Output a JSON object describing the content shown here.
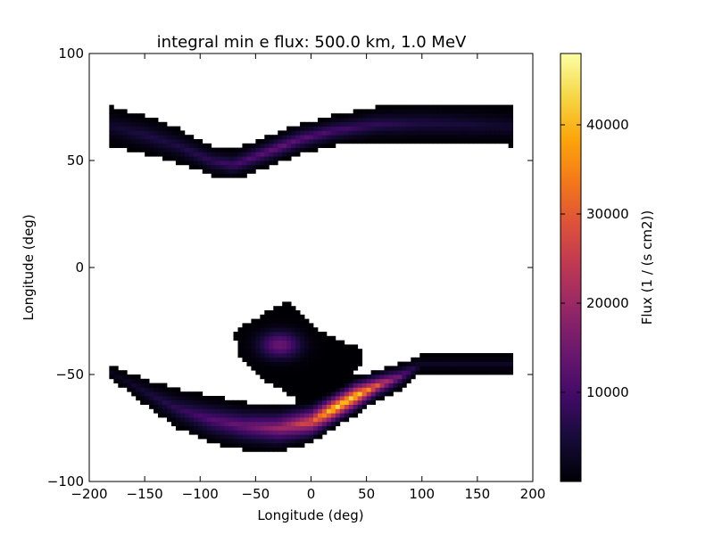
{
  "chart_data": {
    "type": "heatmap",
    "title": "integral min e flux: 500.0 km, 1.0 MeV",
    "xlabel": "Longitude (deg)",
    "ylabel": "Longitude (deg)",
    "xlim": [
      -200,
      200
    ],
    "ylim": [
      -100,
      100
    ],
    "xticks": [
      -200,
      -150,
      -100,
      -50,
      0,
      50,
      100,
      150,
      200
    ],
    "xtick_labels": [
      "−200",
      "−150",
      "−100",
      "−50",
      "0",
      "50",
      "100",
      "150",
      "200"
    ],
    "yticks": [
      -100,
      -50,
      0,
      50,
      100
    ],
    "ytick_labels": [
      "−100",
      "−50",
      "0",
      "50",
      "100"
    ],
    "colormap": "inferno",
    "colorbar": {
      "label": "Flux (1 / (s cm2))",
      "min": 0,
      "max": 48000,
      "ticks": [
        10000,
        20000,
        30000,
        40000
      ],
      "tick_labels": [
        "10000",
        "20000",
        "30000",
        "40000"
      ]
    },
    "grid": false,
    "regions": [
      {
        "name": "northern-band",
        "peak_flux": 14000,
        "peak_longitude": -20,
        "centerline": [
          [
            -180,
            66
          ],
          [
            -150,
            62
          ],
          [
            -120,
            57
          ],
          [
            -90,
            50
          ],
          [
            -70,
            48
          ],
          [
            -40,
            54
          ],
          [
            -10,
            60
          ],
          [
            20,
            64
          ],
          [
            60,
            67
          ],
          [
            100,
            67.5
          ],
          [
            140,
            67
          ],
          [
            180,
            66
          ]
        ],
        "half_width": [
          [
            -180,
            9
          ],
          [
            -150,
            9
          ],
          [
            -120,
            8
          ],
          [
            -90,
            7
          ],
          [
            -70,
            7
          ],
          [
            -40,
            7
          ],
          [
            -10,
            7
          ],
          [
            20,
            7
          ],
          [
            60,
            8
          ],
          [
            100,
            9
          ],
          [
            140,
            9
          ],
          [
            180,
            9
          ]
        ],
        "flux_profile": [
          [
            -180,
            4000
          ],
          [
            -150,
            6000
          ],
          [
            -120,
            6000
          ],
          [
            -90,
            8000
          ],
          [
            -60,
            11000
          ],
          [
            -30,
            14000
          ],
          [
            0,
            12000
          ],
          [
            30,
            10000
          ],
          [
            60,
            8000
          ],
          [
            100,
            6000
          ],
          [
            140,
            5000
          ],
          [
            180,
            4000
          ]
        ]
      },
      {
        "name": "southern-anomaly",
        "peak_flux": 48000,
        "peak_longitude": 30,
        "centerline": [
          [
            -180,
            -49
          ],
          [
            -150,
            -58
          ],
          [
            -120,
            -66
          ],
          [
            -90,
            -71
          ],
          [
            -60,
            -74
          ],
          [
            -30,
            -75
          ],
          [
            0,
            -72
          ],
          [
            20,
            -66
          ],
          [
            40,
            -60
          ],
          [
            60,
            -55
          ],
          [
            80,
            -51
          ],
          [
            100,
            -45
          ]
        ],
        "half_width": [
          [
            -180,
            3
          ],
          [
            -150,
            6
          ],
          [
            -120,
            9
          ],
          [
            -90,
            11
          ],
          [
            -60,
            11
          ],
          [
            -30,
            11
          ],
          [
            0,
            10
          ],
          [
            20,
            9
          ],
          [
            40,
            9
          ],
          [
            60,
            7
          ],
          [
            80,
            6
          ],
          [
            100,
            4
          ]
        ],
        "flux_profile": [
          [
            -180,
            2000
          ],
          [
            -150,
            5000
          ],
          [
            -120,
            8000
          ],
          [
            -90,
            12000
          ],
          [
            -60,
            15000
          ],
          [
            -30,
            20000
          ],
          [
            0,
            30000
          ],
          [
            20,
            45000
          ],
          [
            40,
            44000
          ],
          [
            60,
            30000
          ],
          [
            80,
            15000
          ],
          [
            100,
            3000
          ]
        ]
      },
      {
        "name": "southern-patch",
        "peak_flux": 14000,
        "center": [
          -28,
          -36
        ],
        "corners": [
          [
            -70,
            -30
          ],
          [
            -20,
            -15
          ],
          [
            10,
            -30
          ],
          [
            45,
            -38
          ],
          [
            45,
            -45
          ],
          [
            20,
            -62
          ],
          [
            -10,
            -62
          ],
          [
            -50,
            -50
          ],
          [
            -65,
            -42
          ]
        ]
      },
      {
        "name": "eastern-speck",
        "peak_flux": 500,
        "corners": [
          [
            163,
            -45
          ],
          [
            180,
            -50
          ]
        ]
      }
    ]
  }
}
